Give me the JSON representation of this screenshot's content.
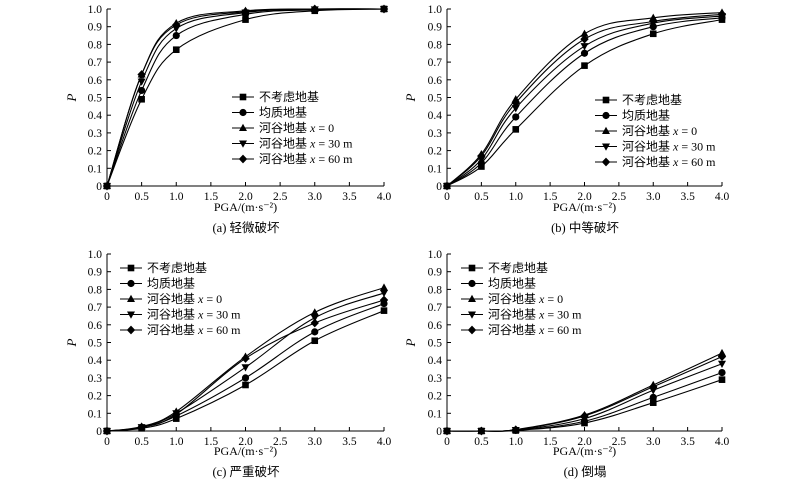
{
  "chart_data": [
    {
      "type": "line",
      "caption": "(a) 轻微破坏",
      "xlabel": "PGA/(m·s⁻²)",
      "ylabel": "P",
      "xlim": [
        0,
        4.0
      ],
      "ylim": [
        0,
        1.0
      ],
      "x_ticks": [
        "0",
        "0.5",
        "1.0",
        "1.5",
        "2.0",
        "2.5",
        "3.0",
        "3.5",
        "4.0"
      ],
      "y_ticks": [
        "0",
        "0.1",
        "0.2",
        "0.3",
        "0.4",
        "0.5",
        "0.6",
        "0.7",
        "0.8",
        "0.9",
        "1.0"
      ],
      "legend_position": "right",
      "x": [
        0,
        0.5,
        1.0,
        2.0,
        3.0,
        4.0
      ],
      "series": [
        {
          "name": "不考虑地基",
          "marker": "square",
          "values": [
            0,
            0.49,
            0.77,
            0.94,
            0.99,
            1.0
          ]
        },
        {
          "name": "均质地基",
          "marker": "circle",
          "values": [
            0,
            0.54,
            0.85,
            0.97,
            0.995,
            1.0
          ]
        },
        {
          "name": "河谷地基 x = 0",
          "marker": "triangle-up",
          "values": [
            0,
            0.63,
            0.92,
            0.99,
            1.0,
            1.0
          ]
        },
        {
          "name": "河谷地基 x = 30 m",
          "marker": "triangle-down",
          "values": [
            0,
            0.59,
            0.89,
            0.98,
            0.998,
            1.0
          ]
        },
        {
          "name": "河谷地基 x = 60 m",
          "marker": "diamond",
          "values": [
            0,
            0.63,
            0.91,
            0.985,
            1.0,
            1.0
          ]
        }
      ]
    },
    {
      "type": "line",
      "caption": "(b) 中等破坏",
      "xlabel": "PGA/(m·s⁻²)",
      "ylabel": "P",
      "xlim": [
        0,
        4.0
      ],
      "ylim": [
        0,
        1.0
      ],
      "x_ticks": [
        "0",
        "0.5",
        "1.0",
        "1.5",
        "2.0",
        "2.5",
        "3.0",
        "3.5",
        "4.0"
      ],
      "y_ticks": [
        "0",
        "0.1",
        "0.2",
        "0.3",
        "0.4",
        "0.5",
        "0.6",
        "0.7",
        "0.8",
        "0.9",
        "1.0"
      ],
      "legend_position": "right",
      "x": [
        0,
        0.5,
        1.0,
        2.0,
        3.0,
        4.0
      ],
      "series": [
        {
          "name": "不考虑地基",
          "marker": "square",
          "values": [
            0,
            0.11,
            0.32,
            0.68,
            0.86,
            0.94
          ]
        },
        {
          "name": "均质地基",
          "marker": "circle",
          "values": [
            0,
            0.13,
            0.39,
            0.75,
            0.9,
            0.95
          ]
        },
        {
          "name": "河谷地基 x = 0",
          "marker": "triangle-up",
          "values": [
            0,
            0.18,
            0.49,
            0.86,
            0.95,
            0.98
          ]
        },
        {
          "name": "河谷地基 x = 30 m",
          "marker": "triangle-down",
          "values": [
            0,
            0.15,
            0.44,
            0.79,
            0.92,
            0.96
          ]
        },
        {
          "name": "河谷地基 x = 60 m",
          "marker": "diamond",
          "values": [
            0,
            0.17,
            0.47,
            0.83,
            0.93,
            0.97
          ]
        }
      ]
    },
    {
      "type": "line",
      "caption": "(c) 严重破坏",
      "xlabel": "PGA/(m·s⁻²)",
      "ylabel": "P",
      "xlim": [
        0,
        4.0
      ],
      "ylim": [
        0,
        1.0
      ],
      "x_ticks": [
        "0",
        "0.5",
        "1.0",
        "1.5",
        "2.0",
        "2.5",
        "3.0",
        "3.5",
        "4.0"
      ],
      "y_ticks": [
        "0",
        "0.1",
        "0.2",
        "0.3",
        "0.4",
        "0.5",
        "0.6",
        "0.7",
        "0.8",
        "0.9",
        "1.0"
      ],
      "legend_position": "top-left",
      "x": [
        0,
        0.5,
        1.0,
        2.0,
        3.0,
        4.0
      ],
      "series": [
        {
          "name": "不考虑地基",
          "marker": "square",
          "values": [
            0,
            0.015,
            0.07,
            0.26,
            0.51,
            0.68
          ]
        },
        {
          "name": "均质地基",
          "marker": "circle",
          "values": [
            0,
            0.02,
            0.085,
            0.3,
            0.56,
            0.72
          ]
        },
        {
          "name": "河谷地基 x = 0",
          "marker": "triangle-up",
          "values": [
            0,
            0.025,
            0.11,
            0.42,
            0.67,
            0.81
          ]
        },
        {
          "name": "河谷地基 x = 30 m",
          "marker": "triangle-down",
          "values": [
            0,
            0.022,
            0.1,
            0.36,
            0.64,
            0.78
          ]
        },
        {
          "name": "河谷地基 x = 60 m",
          "marker": "diamond",
          "values": [
            0,
            0.022,
            0.095,
            0.41,
            0.61,
            0.74
          ]
        }
      ]
    },
    {
      "type": "line",
      "caption": "(d) 倒塌",
      "xlabel": "PGA/(m·s⁻²)",
      "ylabel": "P",
      "xlim": [
        0,
        4.0
      ],
      "ylim": [
        0,
        1.0
      ],
      "x_ticks": [
        "0",
        "0.5",
        "1.0",
        "1.5",
        "2.0",
        "2.5",
        "3.0",
        "3.5",
        "4.0"
      ],
      "y_ticks": [
        "0",
        "0.1",
        "0.2",
        "0.3",
        "0.4",
        "0.5",
        "0.6",
        "0.7",
        "0.8",
        "0.9",
        "1.0"
      ],
      "legend_position": "top-left",
      "x": [
        0,
        0.5,
        1.0,
        2.0,
        3.0,
        4.0
      ],
      "series": [
        {
          "name": "不考虑地基",
          "marker": "square",
          "values": [
            0,
            0.0,
            0.003,
            0.045,
            0.16,
            0.29
          ]
        },
        {
          "name": "均质地基",
          "marker": "circle",
          "values": [
            0,
            0.0,
            0.004,
            0.055,
            0.19,
            0.33
          ]
        },
        {
          "name": "河谷地基 x = 0",
          "marker": "triangle-up",
          "values": [
            0,
            0.0,
            0.008,
            0.09,
            0.26,
            0.44
          ]
        },
        {
          "name": "河谷地基 x = 30 m",
          "marker": "triangle-down",
          "values": [
            0,
            0.0,
            0.006,
            0.07,
            0.23,
            0.38
          ]
        },
        {
          "name": "河谷地基 x = 60 m",
          "marker": "diamond",
          "values": [
            0,
            0.0,
            0.007,
            0.085,
            0.25,
            0.42
          ]
        }
      ]
    }
  ]
}
